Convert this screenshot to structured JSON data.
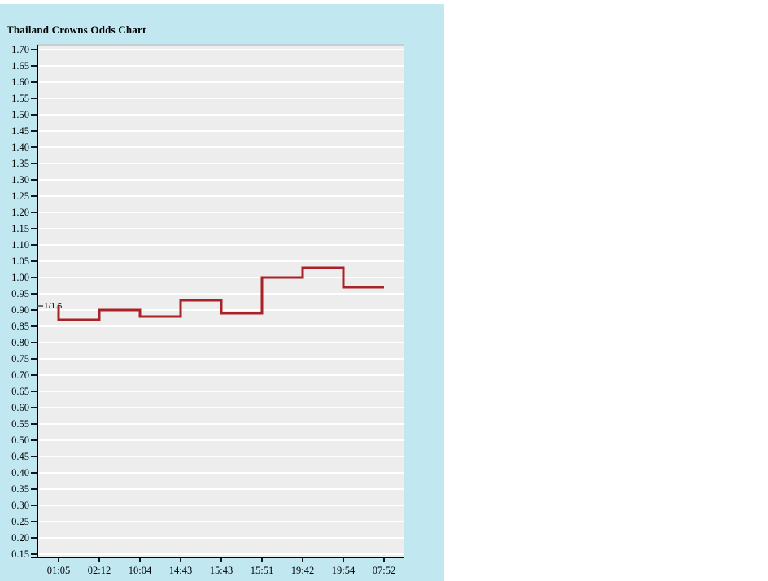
{
  "page": {
    "title": "Thailand Crowns Odds Chart"
  },
  "colors": {
    "panel_bg": "#c1e7f1",
    "plot_bg": "#ededed",
    "plot_top_border": "#bdc6ca",
    "gridline": "#ffffff",
    "axis": "#000000",
    "line": "#a82227",
    "annotation_text": "#1a1a1a"
  },
  "chart_data": {
    "type": "line",
    "subtype": "step-after",
    "title": "Thailand Crowns Odds Chart",
    "xlabel": "",
    "ylabel": "",
    "legend": "none",
    "grid": "horizontal",
    "ylim": [
      0.15,
      1.7
    ],
    "ytick_step": 0.05,
    "y_tick_labels": [
      "1.70",
      "1.65",
      "1.60",
      "1.55",
      "1.50",
      "1.45",
      "1.40",
      "1.35",
      "1.30",
      "1.25",
      "1.20",
      "1.15",
      "1.10",
      "1.05",
      "1.00",
      "0.95",
      "0.90",
      "0.85",
      "0.80",
      "0.75",
      "0.70",
      "0.65",
      "0.60",
      "0.55",
      "0.50",
      "0.45",
      "0.40",
      "0.35",
      "0.30",
      "0.25",
      "0.20",
      "0.15"
    ],
    "x_tick_labels": [
      "01:05",
      "02:12",
      "10:04",
      "14:43",
      "15:43",
      "15:51",
      "19:42",
      "19:54",
      "07:52"
    ],
    "series": [
      {
        "name": "Thailand Crowns odds",
        "values": [
          0.87,
          0.9,
          0.88,
          0.93,
          0.89,
          1.0,
          1.03,
          0.97,
          0.97
        ]
      }
    ],
    "open_value": 0.915,
    "open_annotation_label": "1/1.5",
    "line_color": "#a82227"
  }
}
